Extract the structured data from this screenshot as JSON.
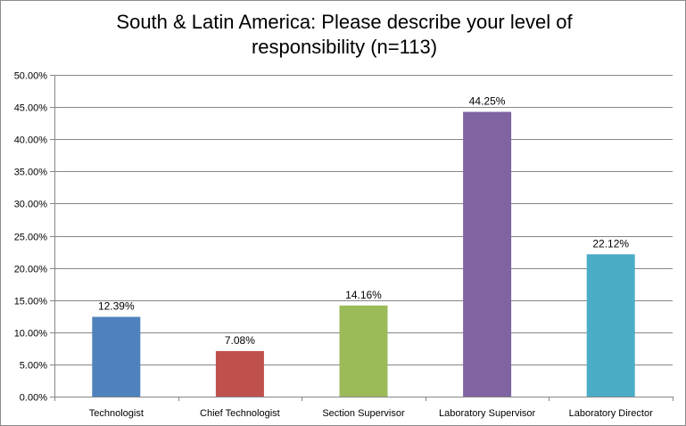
{
  "chart_data": {
    "type": "bar",
    "title_line1": "South & Latin America: Please describe your level of",
    "title_line2": "responsibility (n=113)",
    "xlabel": "",
    "ylabel": "",
    "ylim": [
      0,
      50
    ],
    "ytick_step": 5,
    "ytick_labels": [
      "0.00%",
      "5.00%",
      "10.00%",
      "15.00%",
      "20.00%",
      "25.00%",
      "30.00%",
      "35.00%",
      "40.00%",
      "45.00%",
      "50.00%"
    ],
    "grid": true,
    "categories": [
      "Technologist",
      "Chief Technologist",
      "Section Supervisor",
      "Laboratory Supervisor",
      "Laboratory Director"
    ],
    "values": [
      12.39,
      7.08,
      14.16,
      44.25,
      22.12
    ],
    "value_labels": [
      "12.39%",
      "7.08%",
      "14.16%",
      "44.25%",
      "22.12%"
    ],
    "colors": [
      "#4f81bd",
      "#c0504d",
      "#9bbb59",
      "#8064a2",
      "#4bacc6"
    ],
    "gridline_color": "#868686",
    "axis_color": "#868686"
  }
}
